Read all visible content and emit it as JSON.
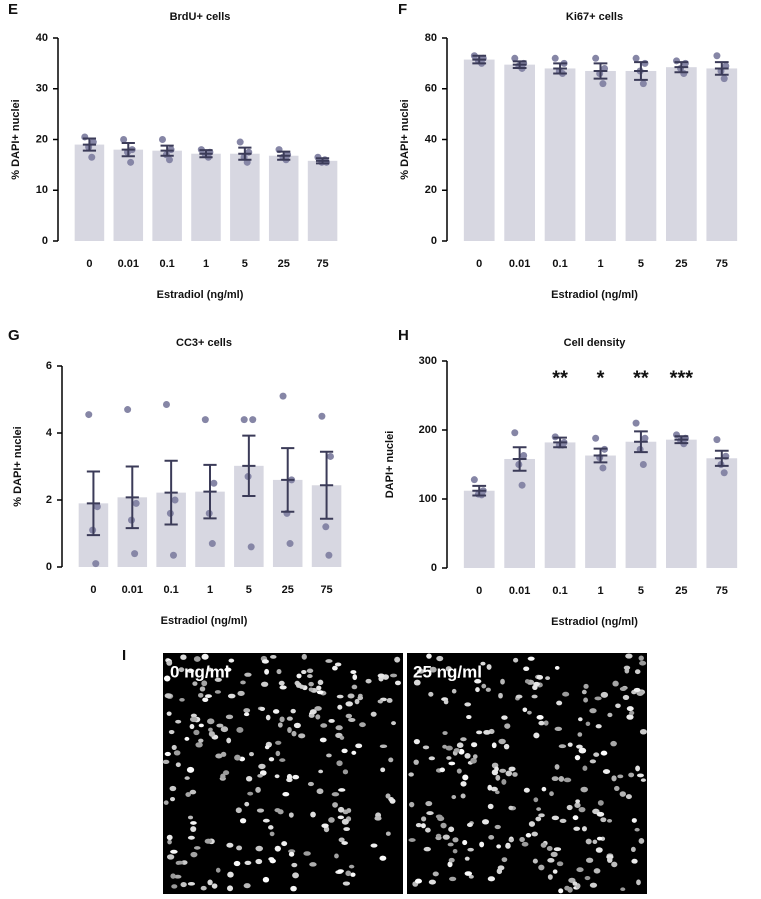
{
  "chart_data": [
    {
      "type": "bar",
      "panel": "E",
      "title": "BrdU+ cells",
      "x_label": "Estradiol (ng/ml)",
      "y_label": "% DAPI+ nuclei",
      "categories": [
        "0",
        "0.01",
        "0.1",
        "1",
        "5",
        "25",
        "75"
      ],
      "values": [
        19,
        18,
        17.8,
        17.2,
        17.2,
        16.8,
        15.8
      ],
      "errors": [
        1.2,
        1.3,
        1,
        0.7,
        1.2,
        0.8,
        0.5
      ],
      "points": [
        [
          20.5,
          19.5,
          18.5,
          16.5
        ],
        [
          20,
          18,
          17.5,
          15.5
        ],
        [
          20,
          18,
          17,
          16
        ],
        [
          18,
          17.5,
          17,
          16.5
        ],
        [
          19.5,
          17.5,
          16.5,
          15.5
        ],
        [
          18,
          17,
          16.5,
          16
        ],
        [
          16.5,
          15.5,
          15.5,
          16
        ]
      ],
      "ylim": [
        0,
        40
      ],
      "yticks": [
        0,
        10,
        20,
        30,
        40
      ],
      "color": "#d7d7e1",
      "point_color": "#8686a6",
      "error_color": "#3b3b58"
    },
    {
      "type": "bar",
      "panel": "F",
      "title": "Ki67+ cells",
      "x_label": "Estradiol (ng/ml)",
      "y_label": "% DAPI+ nuclei",
      "categories": [
        "0",
        "0.01",
        "0.1",
        "1",
        "5",
        "25",
        "75"
      ],
      "values": [
        71.5,
        69.5,
        68,
        67,
        67,
        68.5,
        68
      ],
      "errors": [
        1.5,
        1.3,
        2,
        3,
        3.5,
        2,
        2.5
      ],
      "points": [
        [
          73,
          72,
          71,
          70
        ],
        [
          72,
          70,
          69,
          68
        ],
        [
          72,
          70,
          67,
          66
        ],
        [
          72,
          68,
          66,
          62
        ],
        [
          72,
          70,
          67,
          62
        ],
        [
          71,
          70,
          68,
          66
        ],
        [
          73,
          69,
          67,
          64
        ]
      ],
      "ylim": [
        0,
        80
      ],
      "yticks": [
        0,
        20,
        40,
        60,
        80
      ],
      "color": "#d7d7e1",
      "point_color": "#8686a6",
      "error_color": "#3b3b58"
    },
    {
      "type": "bar",
      "panel": "G",
      "title": "CC3+ cells",
      "x_label": "Estradiol (ng/ml)",
      "y_label": "% DAPI+ nuclei",
      "categories": [
        "0",
        "0.01",
        "0.1",
        "1",
        "5",
        "25",
        "75"
      ],
      "values": [
        1.9,
        2.08,
        2.22,
        2.25,
        3.02,
        2.6,
        2.44
      ],
      "errors": [
        0.95,
        0.92,
        0.95,
        0.8,
        0.9,
        0.95,
        1.0
      ],
      "points": [
        [
          4.55,
          1.8,
          1.1,
          0.1
        ],
        [
          4.7,
          1.9,
          1.4,
          0.4
        ],
        [
          4.85,
          2.0,
          1.6,
          0.35
        ],
        [
          4.4,
          2.5,
          1.6,
          0.7
        ],
        [
          4.4,
          4.4,
          2.7,
          0.6
        ],
        [
          5.1,
          2.6,
          1.6,
          0.7
        ],
        [
          4.5,
          3.3,
          1.2,
          0.35
        ]
      ],
      "ylim": [
        0,
        6
      ],
      "yticks": [
        0,
        2,
        4,
        6
      ],
      "color": "#d7d7e1",
      "point_color": "#8686a6",
      "error_color": "#3b3b58"
    },
    {
      "type": "bar",
      "panel": "H",
      "title": "Cell density",
      "x_label": "Estradiol (ng/ml)",
      "y_label": "DAPI+ nuclei",
      "categories": [
        "0",
        "0.01",
        "0.1",
        "1",
        "5",
        "25",
        "75"
      ],
      "values": [
        112,
        158,
        182,
        163,
        183,
        186,
        159
      ],
      "errors": [
        7,
        17,
        7,
        10,
        15,
        5,
        11
      ],
      "points": [
        [
          128,
          112,
          107,
          106
        ],
        [
          196,
          163,
          150,
          120
        ],
        [
          190,
          182,
          178,
          178
        ],
        [
          188,
          172,
          160,
          145
        ],
        [
          210,
          188,
          172,
          150
        ],
        [
          193,
          188,
          185,
          180
        ],
        [
          186,
          162,
          150,
          138
        ]
      ],
      "annotations": [
        null,
        null,
        "**",
        "*",
        "**",
        "***",
        null
      ],
      "ylim": [
        0,
        300
      ],
      "yticks": [
        0,
        100,
        200,
        300
      ],
      "color": "#d7d7e1",
      "point_color": "#8686a6",
      "error_color": "#3b3b58"
    }
  ],
  "panel_i": {
    "letter": "I",
    "images": [
      {
        "label": "0 ng/ml"
      },
      {
        "label": "25 ng/ml"
      }
    ]
  }
}
